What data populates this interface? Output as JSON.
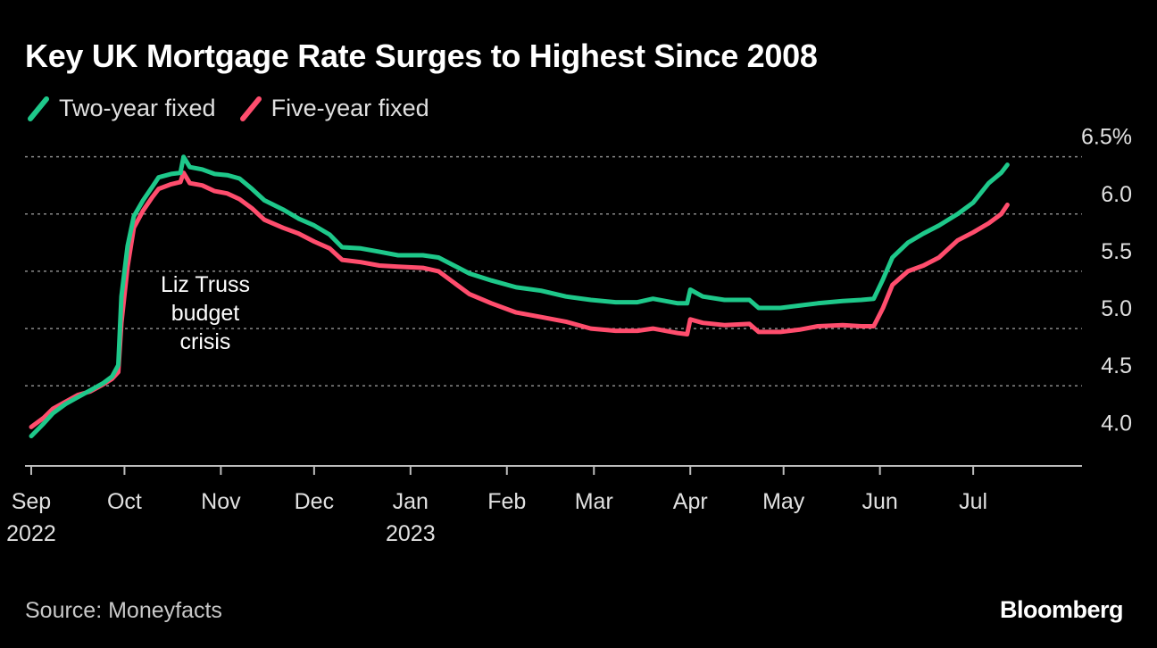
{
  "header": {
    "title": "Key UK Mortgage Rate Surges to Highest Since 2008"
  },
  "footer": {
    "source": "Source: Moneyfacts",
    "logo": "Bloomberg"
  },
  "colors": {
    "background": "#000000",
    "two_year": "#1ec88a",
    "five_year": "#ff4d6d",
    "grid": "#8a8a8a",
    "axis": "#bdbdbd"
  },
  "chart_data": {
    "type": "line",
    "title": "Key UK Mortgage Rate Surges to Highest Since 2008",
    "x_axis": {
      "type": "date",
      "range": [
        "2022-08-30",
        "2023-08-05"
      ],
      "ticks": [
        {
          "date": "2022-09-01",
          "label": "Sep",
          "sublabel": "2022"
        },
        {
          "date": "2022-10-01",
          "label": "Oct",
          "sublabel": ""
        },
        {
          "date": "2022-11-01",
          "label": "Nov",
          "sublabel": ""
        },
        {
          "date": "2022-12-01",
          "label": "Dec",
          "sublabel": ""
        },
        {
          "date": "2023-01-01",
          "label": "Jan",
          "sublabel": "2023"
        },
        {
          "date": "2023-02-01",
          "label": "Feb",
          "sublabel": ""
        },
        {
          "date": "2023-03-01",
          "label": "Mar",
          "sublabel": ""
        },
        {
          "date": "2023-04-01",
          "label": "Apr",
          "sublabel": ""
        },
        {
          "date": "2023-05-01",
          "label": "May",
          "sublabel": ""
        },
        {
          "date": "2023-06-01",
          "label": "Jun",
          "sublabel": ""
        },
        {
          "date": "2023-07-01",
          "label": "Jul",
          "sublabel": ""
        }
      ]
    },
    "y_axis": {
      "range": [
        3.8,
        6.7
      ],
      "ticks": [
        {
          "value": 4.0,
          "label": "4.0"
        },
        {
          "value": 4.5,
          "label": "4.5"
        },
        {
          "value": 5.0,
          "label": "5.0"
        },
        {
          "value": 5.5,
          "label": "5.5"
        },
        {
          "value": 6.0,
          "label": "6.0"
        },
        {
          "value": 6.5,
          "label": "6.5%"
        }
      ],
      "position": "right"
    },
    "grid": true,
    "legend": "top-left",
    "annotation": {
      "text_lines": [
        "Liz Truss",
        "budget",
        "crisis"
      ],
      "date": "2022-10-27",
      "value": 5.32
    },
    "series": [
      {
        "name": "Two-year fixed",
        "color": "#1ec88a",
        "points": [
          [
            "2022-09-01",
            4.06
          ],
          [
            "2022-09-05",
            4.17
          ],
          [
            "2022-09-08",
            4.26
          ],
          [
            "2022-09-12",
            4.34
          ],
          [
            "2022-09-16",
            4.4
          ],
          [
            "2022-09-20",
            4.46
          ],
          [
            "2022-09-24",
            4.52
          ],
          [
            "2022-09-27",
            4.58
          ],
          [
            "2022-09-29",
            4.68
          ],
          [
            "2022-09-30",
            5.28
          ],
          [
            "2022-10-02",
            5.72
          ],
          [
            "2022-10-04",
            5.98
          ],
          [
            "2022-10-07",
            6.12
          ],
          [
            "2022-10-10",
            6.24
          ],
          [
            "2022-10-12",
            6.32
          ],
          [
            "2022-10-16",
            6.35
          ],
          [
            "2022-10-19",
            6.36
          ],
          [
            "2022-10-20",
            6.5
          ],
          [
            "2022-10-22",
            6.41
          ],
          [
            "2022-10-26",
            6.39
          ],
          [
            "2022-10-30",
            6.35
          ],
          [
            "2022-11-03",
            6.34
          ],
          [
            "2022-11-07",
            6.31
          ],
          [
            "2022-11-11",
            6.22
          ],
          [
            "2022-11-15",
            6.12
          ],
          [
            "2022-11-21",
            6.04
          ],
          [
            "2022-11-26",
            5.96
          ],
          [
            "2022-12-01",
            5.9
          ],
          [
            "2022-12-06",
            5.82
          ],
          [
            "2022-12-10",
            5.71
          ],
          [
            "2022-12-16",
            5.7
          ],
          [
            "2022-12-22",
            5.67
          ],
          [
            "2022-12-28",
            5.64
          ],
          [
            "2023-01-05",
            5.64
          ],
          [
            "2023-01-10",
            5.62
          ],
          [
            "2023-01-15",
            5.55
          ],
          [
            "2023-01-20",
            5.48
          ],
          [
            "2023-01-27",
            5.42
          ],
          [
            "2023-02-04",
            5.36
          ],
          [
            "2023-02-12",
            5.33
          ],
          [
            "2023-02-20",
            5.28
          ],
          [
            "2023-02-28",
            5.25
          ],
          [
            "2023-03-08",
            5.23
          ],
          [
            "2023-03-15",
            5.23
          ],
          [
            "2023-03-20",
            5.26
          ],
          [
            "2023-03-28",
            5.22
          ],
          [
            "2023-03-31",
            5.22
          ],
          [
            "2023-04-01",
            5.34
          ],
          [
            "2023-04-05",
            5.28
          ],
          [
            "2023-04-12",
            5.25
          ],
          [
            "2023-04-20",
            5.25
          ],
          [
            "2023-04-23",
            5.18
          ],
          [
            "2023-04-30",
            5.18
          ],
          [
            "2023-05-06",
            5.2
          ],
          [
            "2023-05-12",
            5.22
          ],
          [
            "2023-05-20",
            5.24
          ],
          [
            "2023-05-26",
            5.25
          ],
          [
            "2023-05-30",
            5.26
          ],
          [
            "2023-06-02",
            5.43
          ],
          [
            "2023-06-05",
            5.62
          ],
          [
            "2023-06-10",
            5.75
          ],
          [
            "2023-06-15",
            5.83
          ],
          [
            "2023-06-20",
            5.9
          ],
          [
            "2023-06-26",
            6.0
          ],
          [
            "2023-07-01",
            6.1
          ],
          [
            "2023-07-06",
            6.27
          ],
          [
            "2023-07-10",
            6.36
          ],
          [
            "2023-07-12",
            6.43
          ]
        ]
      },
      {
        "name": "Five-year fixed",
        "color": "#ff4d6d",
        "points": [
          [
            "2022-09-01",
            4.14
          ],
          [
            "2022-09-05",
            4.22
          ],
          [
            "2022-09-08",
            4.3
          ],
          [
            "2022-09-12",
            4.36
          ],
          [
            "2022-09-16",
            4.42
          ],
          [
            "2022-09-20",
            4.45
          ],
          [
            "2022-09-24",
            4.51
          ],
          [
            "2022-09-27",
            4.56
          ],
          [
            "2022-09-29",
            4.62
          ],
          [
            "2022-09-30",
            5.05
          ],
          [
            "2022-10-02",
            5.54
          ],
          [
            "2022-10-04",
            5.88
          ],
          [
            "2022-10-07",
            6.03
          ],
          [
            "2022-10-10",
            6.15
          ],
          [
            "2022-10-12",
            6.22
          ],
          [
            "2022-10-16",
            6.26
          ],
          [
            "2022-10-19",
            6.28
          ],
          [
            "2022-10-20",
            6.36
          ],
          [
            "2022-10-22",
            6.27
          ],
          [
            "2022-10-26",
            6.25
          ],
          [
            "2022-10-30",
            6.2
          ],
          [
            "2022-11-03",
            6.18
          ],
          [
            "2022-11-07",
            6.13
          ],
          [
            "2022-11-11",
            6.05
          ],
          [
            "2022-11-15",
            5.95
          ],
          [
            "2022-11-21",
            5.88
          ],
          [
            "2022-11-26",
            5.83
          ],
          [
            "2022-12-01",
            5.76
          ],
          [
            "2022-12-06",
            5.7
          ],
          [
            "2022-12-10",
            5.6
          ],
          [
            "2022-12-16",
            5.58
          ],
          [
            "2022-12-22",
            5.55
          ],
          [
            "2022-12-28",
            5.54
          ],
          [
            "2023-01-05",
            5.53
          ],
          [
            "2023-01-10",
            5.5
          ],
          [
            "2023-01-15",
            5.4
          ],
          [
            "2023-01-20",
            5.3
          ],
          [
            "2023-01-27",
            5.22
          ],
          [
            "2023-02-04",
            5.14
          ],
          [
            "2023-02-12",
            5.1
          ],
          [
            "2023-02-20",
            5.06
          ],
          [
            "2023-02-28",
            5.0
          ],
          [
            "2023-03-08",
            4.98
          ],
          [
            "2023-03-15",
            4.98
          ],
          [
            "2023-03-20",
            5.0
          ],
          [
            "2023-03-28",
            4.96
          ],
          [
            "2023-03-31",
            4.95
          ],
          [
            "2023-04-01",
            5.08
          ],
          [
            "2023-04-05",
            5.05
          ],
          [
            "2023-04-12",
            5.03
          ],
          [
            "2023-04-20",
            5.04
          ],
          [
            "2023-04-23",
            4.97
          ],
          [
            "2023-04-30",
            4.97
          ],
          [
            "2023-05-06",
            4.99
          ],
          [
            "2023-05-12",
            5.02
          ],
          [
            "2023-05-20",
            5.03
          ],
          [
            "2023-05-26",
            5.02
          ],
          [
            "2023-05-30",
            5.02
          ],
          [
            "2023-06-02",
            5.18
          ],
          [
            "2023-06-05",
            5.38
          ],
          [
            "2023-06-10",
            5.5
          ],
          [
            "2023-06-15",
            5.55
          ],
          [
            "2023-06-20",
            5.62
          ],
          [
            "2023-06-26",
            5.77
          ],
          [
            "2023-07-01",
            5.84
          ],
          [
            "2023-07-06",
            5.92
          ],
          [
            "2023-07-10",
            6.0
          ],
          [
            "2023-07-12",
            6.08
          ]
        ]
      }
    ]
  }
}
